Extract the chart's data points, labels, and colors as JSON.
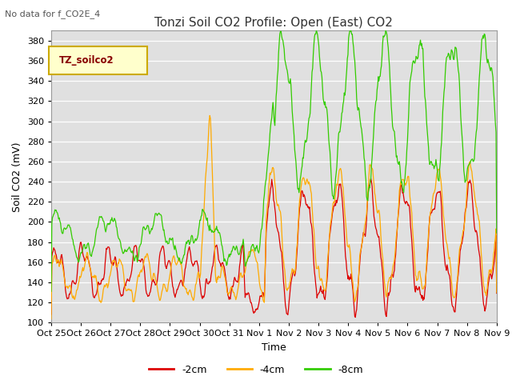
{
  "title": "Tonzi Soil CO2 Profile: Open (East) CO2",
  "no_data_text": "No data for f_CO2E_4",
  "legend_box_text": "TZ_soilco2",
  "ylabel": "Soil CO2 (mV)",
  "xlabel": "Time",
  "ylim": [
    100,
    390
  ],
  "yticks": [
    100,
    120,
    140,
    160,
    180,
    200,
    220,
    240,
    260,
    280,
    300,
    320,
    340,
    360,
    380
  ],
  "line_colors": {
    "red": "#dd0000",
    "orange": "#ffaa00",
    "green": "#33cc00"
  },
  "legend_entries": [
    "-2cm",
    "-4cm",
    "-8cm"
  ],
  "fig_bg": "#ffffff",
  "plot_bg": "#e0e0e0",
  "legend_box_color": "#ffffcc",
  "legend_box_edge": "#ccaa00",
  "title_fontsize": 11,
  "axis_label_fontsize": 9,
  "tick_fontsize": 8
}
